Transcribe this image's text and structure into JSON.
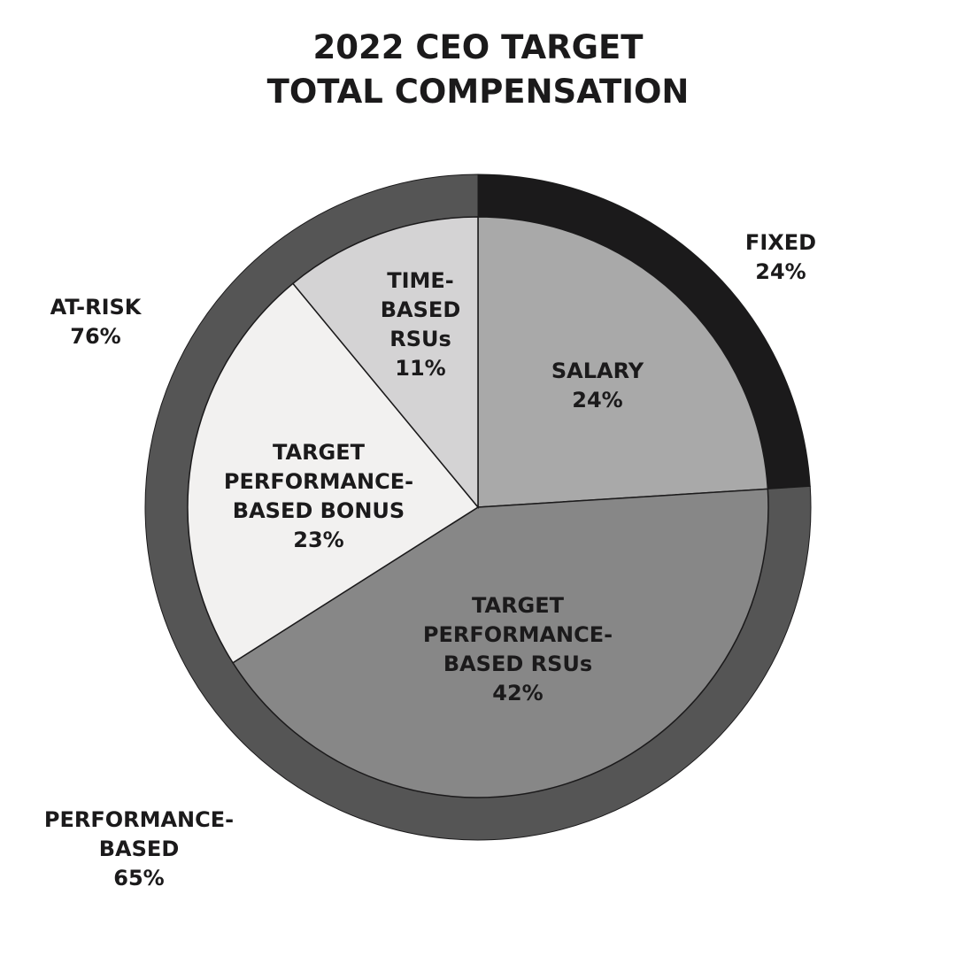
{
  "chart_data": {
    "type": "pie",
    "title": [
      "2022 CEO TARGET",
      "TOTAL COMPENSATION"
    ],
    "start_angle_deg": 0,
    "direction": "clockwise",
    "inner_slices": [
      {
        "key": "salary",
        "label": [
          "SALARY",
          "24%"
        ],
        "value": 24,
        "color": "#a9a9a9"
      },
      {
        "key": "perf_rsus",
        "label": [
          "TARGET",
          "PERFORMANCE-",
          "BASED RSUs",
          "42%"
        ],
        "value": 42,
        "color": "#878787"
      },
      {
        "key": "perf_bonus",
        "label": [
          "TARGET",
          "PERFORMANCE-",
          "BASED BONUS",
          "23%"
        ],
        "value": 23,
        "color": "#f2f1f0"
      },
      {
        "key": "time_rsus",
        "label": [
          "TIME-",
          "BASED",
          "RSUs",
          "11%"
        ],
        "value": 11,
        "color": "#d4d3d4"
      }
    ],
    "outer_ring": [
      {
        "key": "fixed",
        "label": [
          "FIXED",
          "24%"
        ],
        "value": 24,
        "color": "#1b1a1b"
      },
      {
        "key": "at_risk",
        "label": [
          "AT-RISK",
          "76%"
        ],
        "value": 76,
        "color": "#555555"
      }
    ],
    "outer_labels": [
      {
        "key": "performance_based",
        "label": [
          "PERFORMANCE-",
          "BASED",
          "65%"
        ]
      }
    ]
  }
}
